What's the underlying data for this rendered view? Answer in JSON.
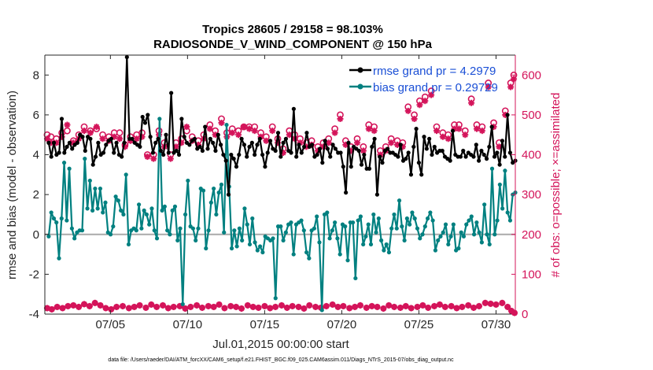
{
  "chart_data": {
    "type": "line",
    "title_line1": "Tropics 28605 / 29158 = 98.103%",
    "title_line2": "RADIOSONDE_V_WIND_COMPONENT @ 150 hPa",
    "ylabel_left": "rmse and bias (model - observation)",
    "ylabel_right": "# of obs: o=possible; ×=assimilated",
    "xlabel": "Jul.01,2015 00:00:00 start",
    "footer": "data file: /Users/raeder/DAI/ATM_forcXX/CAM6_setup/f.e21.FHIST_BGC.f09_025.CAM6assim.011/Diags_NTrS_2015-07/obs_diag_output.nc",
    "xlim": [
      0.75,
      31.25
    ],
    "ylim_left": [
      -4,
      9
    ],
    "ylim_right": [
      0,
      650
    ],
    "left_ticks": [
      -4,
      -2,
      0,
      2,
      4,
      6,
      8
    ],
    "right_ticks": [
      0,
      100,
      200,
      300,
      400,
      500,
      600
    ],
    "x_ticks": [
      {
        "x": 5,
        "label": "07/05"
      },
      {
        "x": 10,
        "label": "07/10"
      },
      {
        "x": 15,
        "label": "07/15"
      },
      {
        "x": 20,
        "label": "07/20"
      },
      {
        "x": 25,
        "label": "07/25"
      },
      {
        "x": 30,
        "label": "07/30"
      }
    ],
    "legend": [
      {
        "label": "rmse grand pr = 4.2979",
        "color": "#000000"
      },
      {
        "label": "bias grand pr = 0.29729",
        "color": "#008080"
      }
    ],
    "colors": {
      "rmse": "#000000",
      "bias": "#008080",
      "obs": "#d4145a",
      "zero": "#aaaaaa"
    },
    "series": [
      {
        "name": "rmse",
        "values": [
          4.6,
          3.9,
          4.6,
          4.0,
          4.1,
          5.8,
          4.1,
          4.4,
          4.6,
          4.3,
          4.5,
          4.6,
          5.0,
          4.9,
          4.2,
          4.9,
          4.8,
          3.5,
          3.9,
          4.6,
          4.0,
          4.1,
          4.5,
          4.7,
          4.8,
          4.1,
          4.6,
          4.0,
          3.9,
          4.6,
          8.9,
          4.8,
          4.8,
          4.6,
          4.5,
          4.4,
          5.9,
          5.6,
          6.0,
          4.9,
          4.1,
          4.6,
          4.8,
          4.2,
          4.0,
          5.0,
          4.1,
          7.1,
          4.1,
          4.2,
          4.0,
          5.8,
          4.9,
          4.6,
          4.5,
          4.7,
          4.8,
          4.3,
          4.4,
          4.2,
          5.4,
          4.3,
          4.8,
          4.6,
          4.2,
          5.0,
          4.5,
          4.0,
          3.7,
          2.0,
          4.0,
          3.8,
          3.4,
          4.0,
          4.8,
          4.5,
          3.9,
          4.4,
          4.6,
          4.0,
          4.5,
          4.8,
          4.0,
          3.4,
          4.1,
          4.7,
          4.3,
          4.2,
          5.1,
          3.9,
          4.6,
          4.8,
          4.2,
          4.1,
          6.3,
          3.9,
          4.5,
          4.1,
          4.4,
          5.1,
          4.4,
          4.5,
          3.9,
          4.0,
          4.3,
          3.6,
          4.7,
          4.3,
          3.9,
          4.5,
          4.3,
          4.1,
          4.1,
          3.4,
          2.1,
          4.6,
          3.4,
          4.4,
          4.3,
          4.2,
          3.5,
          4.0,
          3.3,
          3.3,
          4.4,
          4.8,
          2.0,
          3.9,
          3.6,
          4.2,
          4.3,
          4.1,
          4.1,
          4.0,
          3.9,
          4.5,
          3.7,
          3.8,
          4.1,
          3.0,
          4.4,
          5.3,
          3.6,
          3.0,
          4.9,
          4.3,
          4.8,
          4.0,
          4.4,
          4.1,
          4.2,
          4.2,
          3.9,
          3.8,
          3.7,
          5.2,
          4.0,
          3.9,
          3.9,
          4.2,
          3.9,
          4.1,
          4.0,
          3.9,
          4.5,
          3.7,
          4.2,
          4.0,
          3.8,
          4.4,
          5.4,
          3.9,
          4.1,
          3.5,
          4.7,
          3.9,
          6.0,
          4.1,
          3.6,
          3.7
        ]
      },
      {
        "name": "bias",
        "values": [
          -0.1,
          1.1,
          0.8,
          0.6,
          -1.2,
          0.8,
          3.6,
          0.7,
          3.3,
          0.3,
          -0.2,
          0.1,
          0.2,
          0.2,
          3.8,
          1.3,
          2.7,
          1.2,
          2.3,
          1.3,
          2.3,
          1.1,
          1.6,
          0.1,
          0.0,
          0.4,
          1.9,
          1.7,
          1.2,
          1.0,
          3.0,
          -0.5,
          0.2,
          0.3,
          0.2,
          1.5,
          0.3,
          1.2,
          1.0,
          0.5,
          1.3,
          0.2,
          -0.2,
          5.8,
          1.2,
          1.4,
          0.2,
          0.0,
          1.2,
          1.4,
          -0.3,
          0.3,
          -3.5,
          1.0,
          2.7,
          0.4,
          0.3,
          -0.3,
          0.3,
          2.3,
          2.2,
          -0.7,
          0.2,
          1.6,
          2.3,
          1.0,
          2.1,
          2.5,
          0.1,
          5.5,
          2.4,
          -0.7,
          0.2,
          -0.6,
          0.3,
          -0.3,
          1.3,
          0.5,
          -0.5,
          0.8,
          -0.4,
          -0.8,
          -0.6,
          -0.9,
          -0.1,
          -0.2,
          -0.3,
          -0.2,
          -3.2,
          0.4,
          0.4,
          -0.3,
          0.1,
          0.5,
          0.6,
          -1.0,
          0.5,
          0.6,
          0.7,
          0.2,
          -0.9,
          -1.2,
          0.2,
          0.3,
          0.9,
          -0.4,
          -3.8,
          1.0,
          1.1,
          -0.2,
          0.2,
          0.6,
          -0.2,
          -1.0,
          0.5,
          0.4,
          -1.3,
          0.6,
          0.6,
          -2.2,
          0.7,
          0.9,
          -0.5,
          -0.1,
          0.5,
          -0.5,
          1.0,
          0.1,
          0.8,
          -0.3,
          -0.8,
          -0.5,
          -0.9,
          0.3,
          1.0,
          0.3,
          1.7,
          0.4,
          -0.3,
          0.8,
          0.5,
          1.1,
          0.8,
          0.3,
          -0.2,
          0.0,
          0.4,
          0.8,
          1.1,
          0.7,
          -0.8,
          -0.3,
          -0.1,
          0.1,
          0.5,
          -0.5,
          -0.1,
          0.5,
          -0.8,
          -0.7,
          0.1,
          -0.1,
          0.5,
          0.7,
          0.9,
          0.0,
          0.6,
          0.1,
          -0.4,
          1.5,
          0.0,
          -0.5,
          3.3,
          0.0,
          0.7,
          2.5,
          1.3,
          3.2,
          1.1,
          0.7,
          2.0,
          2.1
        ]
      },
      {
        "name": "obs_possible",
        "x": [
          0.9,
          1.15,
          1.5,
          1.85,
          2.2,
          2.6,
          2.95,
          3.3,
          3.7,
          4.1,
          4.5,
          4.9,
          5.25,
          5.6,
          5.95,
          6.3,
          6.7,
          7.05,
          7.4,
          7.8,
          8.15,
          8.5,
          8.9,
          9.25,
          9.6,
          9.95,
          10.3,
          10.7,
          11.05,
          11.45,
          11.8,
          12.2,
          12.55,
          12.9,
          13.3,
          13.65,
          14.0,
          14.35,
          14.75,
          15.1,
          15.5,
          15.85,
          16.2,
          16.6,
          16.95,
          17.3,
          17.7,
          18.05,
          18.45,
          18.8,
          19.15,
          19.55,
          19.9,
          20.25,
          20.6,
          21.0,
          21.4,
          21.75,
          22.1,
          22.5,
          22.85,
          23.2,
          23.6,
          23.95,
          24.3,
          24.7,
          25.05,
          25.4,
          25.8,
          26.15,
          26.55,
          26.9,
          27.3,
          27.6,
          28.0,
          28.4,
          28.75,
          29.1,
          29.5,
          29.85,
          30.2,
          30.6,
          30.95,
          31.15
        ],
        "values": [
          450,
          445,
          440,
          455,
          460,
          435,
          450,
          470,
          460,
          465,
          450,
          445,
          455,
          455,
          425,
          445,
          450,
          455,
          400,
          400,
          460,
          430,
          400,
          430,
          440,
          460,
          445,
          435,
          450,
          475,
          460,
          490,
          455,
          465,
          460,
          470,
          470,
          470,
          455,
          445,
          470,
          440,
          415,
          460,
          450,
          440,
          430,
          435,
          420,
          430,
          440,
          465,
          500,
          435,
          420,
          440,
          420,
          475,
          470,
          410,
          420,
          440,
          435,
          430,
          520,
          500,
          535,
          545,
          560,
          470,
          455,
          450,
          475,
          475,
          460,
          540,
          475,
          470,
          580,
          480,
          430,
          510,
          580,
          600
        ]
      },
      {
        "name": "obs_assimilated",
        "x": [
          0.9,
          1.15,
          1.5,
          1.85,
          2.2,
          2.6,
          2.95,
          3.3,
          3.7,
          4.1,
          4.5,
          4.9,
          5.25,
          5.6,
          5.95,
          6.3,
          6.7,
          7.05,
          7.4,
          7.8,
          8.15,
          8.5,
          8.9,
          9.25,
          9.6,
          9.95,
          10.3,
          10.7,
          11.05,
          11.45,
          11.8,
          12.2,
          12.55,
          12.9,
          13.3,
          13.65,
          14.0,
          14.35,
          14.75,
          15.1,
          15.5,
          15.85,
          16.2,
          16.6,
          16.95,
          17.3,
          17.7,
          18.05,
          18.45,
          18.8,
          19.15,
          19.55,
          19.9,
          20.25,
          20.6,
          21.0,
          21.4,
          21.75,
          22.1,
          22.5,
          22.85,
          23.2,
          23.6,
          23.95,
          24.3,
          24.7,
          25.05,
          25.4,
          25.8,
          26.15,
          26.55,
          26.9,
          27.3,
          27.6,
          28.0,
          28.4,
          28.75,
          29.1,
          29.5,
          29.85,
          30.2,
          30.6,
          30.95,
          31.15
        ],
        "values": [
          440,
          430,
          430,
          445,
          475,
          430,
          440,
          460,
          455,
          470,
          440,
          435,
          445,
          440,
          420,
          435,
          440,
          445,
          395,
          390,
          450,
          420,
          390,
          420,
          430,
          470,
          435,
          425,
          440,
          465,
          450,
          480,
          445,
          455,
          450,
          470,
          465,
          460,
          445,
          435,
          460,
          430,
          405,
          450,
          440,
          430,
          420,
          425,
          410,
          420,
          430,
          455,
          490,
          425,
          410,
          430,
          410,
          465,
          460,
          400,
          410,
          430,
          425,
          420,
          510,
          490,
          525,
          535,
          550,
          460,
          445,
          440,
          465,
          465,
          450,
          530,
          465,
          460,
          570,
          470,
          420,
          500,
          570,
          590
        ]
      },
      {
        "name": "obs_low",
        "x": [
          0.9,
          1.2,
          1.55,
          1.9,
          2.25,
          2.6,
          2.95,
          3.3,
          3.65,
          4.0,
          4.35,
          4.7,
          5.05,
          5.4,
          5.8,
          6.2,
          6.55,
          6.9,
          7.3,
          7.65,
          8.0,
          8.4,
          8.75,
          9.1,
          9.5,
          9.85,
          10.2,
          10.6,
          10.95,
          11.35,
          11.7,
          12.05,
          12.4,
          12.8,
          13.15,
          13.5,
          13.9,
          14.25,
          14.6,
          15.0,
          15.35,
          15.7,
          16.1,
          16.45,
          16.8,
          17.2,
          17.55,
          17.9,
          18.3,
          18.65,
          19.0,
          19.4,
          19.75,
          20.1,
          20.5,
          20.85,
          21.2,
          21.6,
          21.95,
          22.3,
          22.7,
          23.05,
          23.4,
          23.8,
          24.15,
          24.5,
          24.9,
          25.25,
          25.6,
          26.0,
          26.35,
          26.7,
          27.1,
          27.45,
          27.8,
          28.2,
          28.55,
          28.9,
          29.3,
          29.65,
          30.0,
          30.4,
          30.75,
          31.0,
          31.2
        ],
        "values": [
          15,
          12,
          18,
          15,
          20,
          22,
          18,
          25,
          20,
          28,
          22,
          15,
          12,
          18,
          20,
          15,
          18,
          22,
          16,
          24,
          18,
          22,
          15,
          18,
          20,
          14,
          18,
          22,
          16,
          20,
          18,
          24,
          15,
          20,
          18,
          14,
          22,
          18,
          16,
          20,
          15,
          18,
          22,
          16,
          20,
          18,
          14,
          22,
          18,
          16,
          20,
          24,
          18,
          20,
          15,
          18,
          22,
          16,
          20,
          18,
          14,
          22,
          18,
          16,
          20,
          15,
          18,
          22,
          16,
          20,
          24,
          18,
          20,
          15,
          18,
          22,
          16,
          20,
          28,
          26,
          24,
          28,
          18,
          8,
          3
        ]
      }
    ]
  }
}
